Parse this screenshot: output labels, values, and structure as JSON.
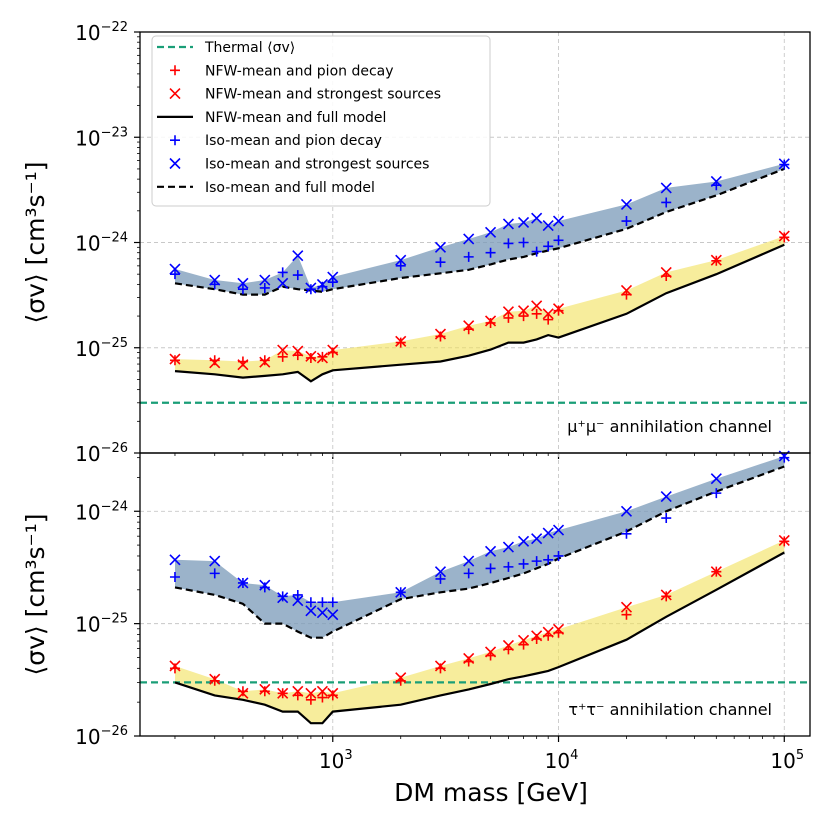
{
  "colors": {
    "thermal": "#1a9e77",
    "nfw_marker": "#ff0000",
    "iso_marker": "#0000ff",
    "nfw_band": "#f2e15a",
    "iso_band": "#7a99b8",
    "line": "#000000"
  },
  "xlabel": "DM mass [GeV]",
  "x_ticks": [
    {
      "base": "10",
      "exp": "3",
      "value": 1000
    },
    {
      "base": "10",
      "exp": "4",
      "value": 10000
    },
    {
      "base": "10",
      "exp": "5",
      "value": 100000
    }
  ],
  "legend": [
    {
      "label": "Thermal ⟨σv⟩",
      "style": "thermal"
    },
    {
      "label": "NFW-mean and  pion decay",
      "style": "nfw_plus"
    },
    {
      "label": "NFW-mean and  strongest sources",
      "style": "nfw_x"
    },
    {
      "label": "NFW-mean and full model",
      "style": "solid"
    },
    {
      "label": "Iso-mean and  pion decay",
      "style": "iso_plus"
    },
    {
      "label": "Iso-mean and  strongest sources",
      "style": "iso_x"
    },
    {
      "label": "Iso-mean and full model",
      "style": "dashed"
    }
  ],
  "chart_data": [
    {
      "type": "line",
      "channel_label": "μ⁺μ⁻ annihilation channel",
      "ylabel": "⟨σv⟩ [cm³s⁻¹]",
      "xlabel": "",
      "xscale": "log",
      "yscale": "log",
      "xlim": [
        140,
        130000
      ],
      "ylim": [
        1e-26,
        1e-22
      ],
      "grid": true,
      "legend_position": "top-left",
      "y_ticks": [
        {
          "base": "10",
          "exp": "−22",
          "value": 1e-22
        },
        {
          "base": "10",
          "exp": "−23",
          "value": 1e-23
        },
        {
          "base": "10",
          "exp": "−24",
          "value": 1e-24
        },
        {
          "base": "10",
          "exp": "−25",
          "value": 1e-25
        },
        {
          "base": "10",
          "exp": "−26",
          "value": 1e-26
        }
      ],
      "thermal": 3e-26,
      "x": [
        200,
        300,
        400,
        500,
        600,
        700,
        800,
        900,
        1000,
        2000,
        3000,
        4000,
        5000,
        6000,
        7000,
        8000,
        9000,
        10000,
        20000,
        30000,
        50000,
        100000
      ],
      "series": [
        {
          "name": "NFW-mean and  pion decay",
          "marker": "plus",
          "values": [
            7.6e-26,
            7.6e-26,
            7.4e-26,
            7.6e-26,
            8.2e-26,
            8.5e-26,
            8e-26,
            8.2e-26,
            9e-26,
            1.12e-25,
            1.28e-25,
            1.5e-25,
            1.72e-25,
            1.92e-25,
            2e-25,
            2.1e-25,
            1.85e-25,
            2.25e-25,
            3.2e-25,
            4.8e-25,
            6.7e-25,
            1.12e-24
          ]
        },
        {
          "name": "NFW-mean and  strongest sources",
          "marker": "x",
          "values": [
            7.8e-26,
            7.2e-26,
            6.9e-26,
            7.3e-26,
            9.5e-26,
            9.3e-26,
            8.3e-26,
            8e-26,
            9.5e-26,
            1.15e-25,
            1.35e-25,
            1.62e-25,
            1.8e-25,
            2.2e-25,
            2.25e-25,
            2.5e-25,
            2.1e-25,
            2.35e-25,
            3.5e-25,
            5.2e-25,
            6.8e-25,
            1.15e-24
          ]
        },
        {
          "name": "NFW-mean and full model",
          "style": "solid",
          "values": [
            6e-26,
            5.6e-26,
            5.2e-26,
            5.4e-26,
            5.6e-26,
            5.9e-26,
            4.8e-26,
            5.6e-26,
            6.1e-26,
            6.9e-26,
            7.4e-26,
            8.4e-26,
            9.6e-26,
            1.12e-25,
            1.12e-25,
            1.2e-25,
            1.32e-25,
            1.25e-25,
            2.1e-25,
            3.3e-25,
            5e-25,
            9.5e-25
          ]
        },
        {
          "name": "Iso-mean and  pion decay",
          "marker": "plus",
          "values": [
            5e-25,
            4e-25,
            3.6e-25,
            3.7e-25,
            5.2e-25,
            4.9e-25,
            3.6e-25,
            3.8e-25,
            4.2e-25,
            6e-25,
            6.5e-25,
            7.3e-25,
            8e-25,
            9.8e-25,
            1e-24,
            8.2e-25,
            9.2e-25,
            1.05e-24,
            1.6e-24,
            2.4e-24,
            3.5e-24,
            5.5e-24
          ]
        },
        {
          "name": "Iso-mean and  strongest sources",
          "marker": "x",
          "values": [
            5.6e-25,
            4.4e-25,
            4.1e-25,
            4.4e-25,
            4.1e-25,
            7.5e-25,
            3.7e-25,
            4e-25,
            4.7e-25,
            6.8e-25,
            9e-25,
            1.08e-24,
            1.25e-24,
            1.5e-24,
            1.55e-24,
            1.7e-24,
            1.45e-24,
            1.6e-24,
            2.3e-24,
            3.3e-24,
            3.8e-24,
            5.6e-24
          ]
        },
        {
          "name": "Iso-mean and full model",
          "style": "dashed",
          "values": [
            4.1e-25,
            3.6e-25,
            3.2e-25,
            3.2e-25,
            3.8e-25,
            3.6e-25,
            3.5e-25,
            3.4e-25,
            3.6e-25,
            4.6e-25,
            5.1e-25,
            5.5e-25,
            6.2e-25,
            6.9e-25,
            7.3e-25,
            7.9e-25,
            8.4e-25,
            8.8e-25,
            1.35e-24,
            1.95e-24,
            2.8e-24,
            5e-24
          ]
        }
      ]
    },
    {
      "type": "line",
      "channel_label": "τ⁺τ⁻ annihilation channel",
      "ylabel": "⟨σv⟩ [cm³s⁻¹]",
      "xlabel": "DM mass [GeV]",
      "xscale": "log",
      "yscale": "log",
      "xlim": [
        140,
        130000
      ],
      "ylim": [
        1e-26,
        3.3e-24
      ],
      "grid": true,
      "y_ticks": [
        {
          "base": "10",
          "exp": "−24",
          "value": 1e-24
        },
        {
          "base": "10",
          "exp": "−25",
          "value": 1e-25
        },
        {
          "base": "10",
          "exp": "−26",
          "value": 1e-26
        }
      ],
      "thermal": 3e-26,
      "x": [
        200,
        300,
        400,
        500,
        600,
        700,
        800,
        900,
        1000,
        2000,
        3000,
        4000,
        5000,
        6000,
        7000,
        8000,
        9000,
        10000,
        20000,
        30000,
        50000,
        100000
      ],
      "series": [
        {
          "name": "NFW-mean and  pion decay",
          "marker": "plus",
          "values": [
            4e-26,
            3.1e-26,
            2.5e-26,
            2.5e-26,
            2.4e-26,
            2.3e-26,
            2.1e-26,
            2.2e-26,
            2.3e-26,
            3.1e-26,
            4e-26,
            4.6e-26,
            5.2e-26,
            5.9e-26,
            6.5e-26,
            7.3e-26,
            7.8e-26,
            8.3e-26,
            1.2e-25,
            1.75e-25,
            2.9e-25,
            5.4e-25
          ]
        },
        {
          "name": "NFW-mean and  strongest sources",
          "marker": "x",
          "values": [
            4.2e-26,
            3.2e-26,
            2.4e-26,
            2.6e-26,
            2.4e-26,
            2.5e-26,
            2.4e-26,
            2.5e-26,
            2.4e-26,
            3.3e-26,
            4.2e-26,
            4.9e-26,
            5.6e-26,
            6.4e-26,
            7.1e-26,
            7.8e-26,
            8.4e-26,
            8.9e-26,
            1.4e-25,
            1.8e-25,
            2.9e-25,
            5.5e-25
          ]
        },
        {
          "name": "NFW-mean and full model",
          "style": "solid",
          "values": [
            3e-26,
            2.3e-26,
            2.1e-26,
            1.9e-26,
            1.65e-26,
            1.65e-26,
            1.3e-26,
            1.3e-26,
            1.65e-26,
            1.9e-26,
            2.3e-26,
            2.6e-26,
            2.9e-26,
            3.2e-26,
            3.4e-26,
            3.6e-26,
            3.8e-26,
            4.1e-26,
            7.2e-26,
            1.15e-25,
            2e-25,
            4.3e-25
          ]
        },
        {
          "name": "Iso-mean and  pion decay",
          "marker": "plus",
          "values": [
            2.6e-25,
            2.8e-25,
            2.3e-25,
            2.1e-25,
            1.75e-25,
            1.8e-25,
            1.55e-25,
            1.55e-25,
            1.55e-25,
            1.9e-25,
            2.5e-25,
            2.8e-25,
            3.1e-25,
            3.2e-25,
            3.4e-25,
            3.6e-25,
            3.7e-25,
            4e-25,
            6.3e-25,
            8.7e-25,
            1.45e-24,
            3e-24
          ]
        },
        {
          "name": "Iso-mean and  strongest sources",
          "marker": "x",
          "values": [
            3.7e-25,
            3.6e-25,
            2.3e-25,
            2.2e-25,
            1.7e-25,
            1.6e-25,
            1.3e-25,
            1.25e-25,
            1.2e-25,
            1.9e-25,
            2.9e-25,
            3.6e-25,
            4.4e-25,
            4.8e-25,
            5.4e-25,
            5.7e-25,
            6.4e-25,
            6.8e-25,
            1e-24,
            1.35e-24,
            1.95e-24,
            3.1e-24
          ]
        },
        {
          "name": "Iso-mean and full model",
          "style": "dashed",
          "values": [
            2.1e-25,
            1.8e-25,
            1.5e-25,
            1e-25,
            1e-25,
            8.5e-26,
            7.5e-26,
            7.5e-26,
            8.5e-26,
            1.65e-25,
            1.9e-25,
            2.05e-25,
            2.3e-25,
            2.55e-25,
            2.8e-25,
            3.1e-25,
            3.4e-25,
            3.8e-25,
            6.6e-25,
            1e-24,
            1.5e-24,
            2.5e-24
          ]
        }
      ]
    }
  ]
}
